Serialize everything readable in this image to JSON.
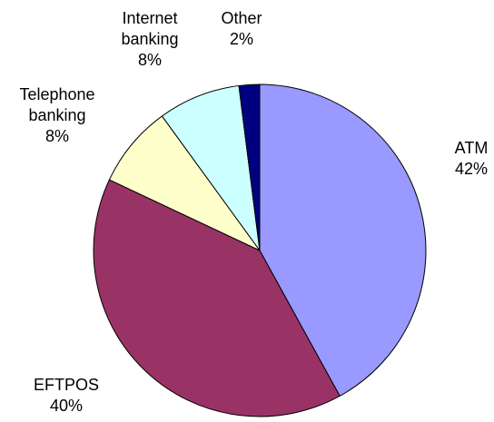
{
  "chart_data": {
    "type": "pie",
    "title": "",
    "start_angle_deg": 0,
    "direction": "clockwise",
    "slices": [
      {
        "label_lines": [
          "ATM"
        ],
        "percent_label": "42%",
        "value": 42,
        "color": "#9999ff"
      },
      {
        "label_lines": [
          "EFTPOS"
        ],
        "percent_label": "40%",
        "value": 40,
        "color": "#993366"
      },
      {
        "label_lines": [
          "Telephone",
          "banking"
        ],
        "percent_label": "8%",
        "value": 8,
        "color": "#ffffcc"
      },
      {
        "label_lines": [
          "Internet",
          "banking"
        ],
        "percent_label": "8%",
        "value": 8,
        "color": "#ccffff"
      },
      {
        "label_lines": [
          "Other"
        ],
        "percent_label": "2%",
        "value": 2,
        "color": "#000080"
      }
    ],
    "slice_outline_color": "#000000"
  }
}
